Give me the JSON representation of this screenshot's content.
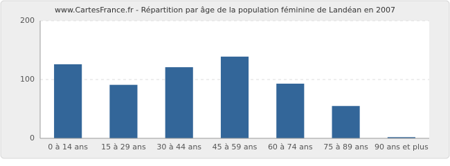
{
  "chart_data": {
    "type": "bar",
    "title": "www.CartesFrance.fr - Répartition par âge de la population féminine de Landéan en 2007",
    "categories": [
      "0 à 14 ans",
      "15 à 29 ans",
      "30 à 44 ans",
      "45 à 59 ans",
      "60 à 74 ans",
      "75 à 89 ans",
      "90 ans et plus"
    ],
    "values": [
      126,
      91,
      121,
      139,
      93,
      55,
      2
    ],
    "color": "#336699",
    "ylim": [
      0,
      200
    ],
    "yticks": [
      0,
      100,
      200
    ],
    "grid": true
  }
}
